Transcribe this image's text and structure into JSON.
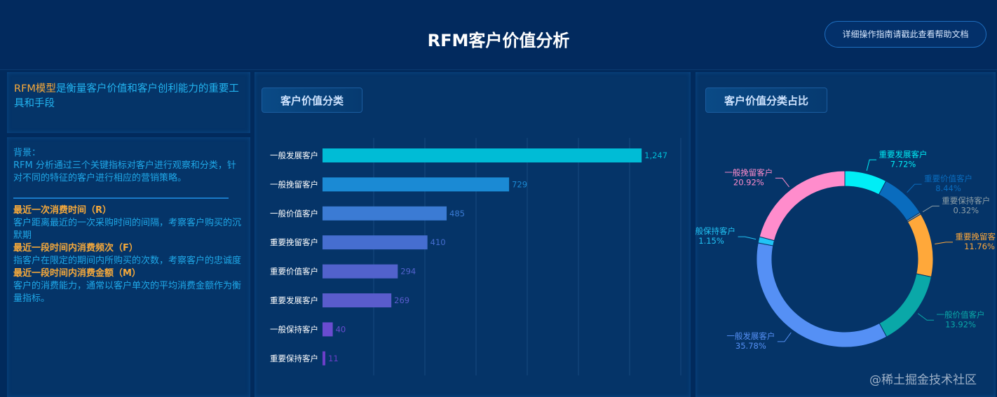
{
  "header": {
    "title": "RFM客户价值分析",
    "help_button": "详细操作指南请戳此查看帮助文档"
  },
  "intro": {
    "highlight": "RFM模型",
    "text": "是衡量客户价值和客户创利能力的重要工具和手段"
  },
  "description": {
    "background_label": "背景：",
    "background_text": "RFM 分析通过三个关键指标对客户进行观察和分类，针对不同的特征的客户进行相应的营销策略。",
    "metrics": [
      {
        "title": "最近一次消费时间（R）",
        "text": "客户距离最近的一次采购时间的间隔，考察客户购买的沉默期"
      },
      {
        "title": "最近一段时间内消费频次（F）",
        "text": "指客户在限定的期间内所购买的次数，考察客户的忠诚度"
      },
      {
        "title": "最近一段时间内消费金额（M）",
        "text": "客户的消费能力，通常以客户单次的平均消费金额作为衡量指标。"
      }
    ]
  },
  "bar_panel": {
    "title": "客户价值分类"
  },
  "pie_panel": {
    "title": "客户价值分类占比"
  },
  "watermark": "@稀土掘金技术社区",
  "chart_data": [
    {
      "type": "bar",
      "orientation": "horizontal",
      "categories": [
        "一般发展客户",
        "一般挽留客户",
        "一般价值客户",
        "重要挽留客户",
        "重要价值客户",
        "重要发展客户",
        "一般保持客户",
        "重要保持客户"
      ],
      "values": [
        1247,
        729,
        485,
        410,
        294,
        269,
        40,
        11
      ],
      "value_labels": [
        "1,247",
        "729",
        "485",
        "410",
        "294",
        "269",
        "40",
        "11"
      ],
      "colors": [
        "#00bcd6",
        "#1b8ad4",
        "#3b7bd4",
        "#466ed0",
        "#5262cc",
        "#5a5ccc",
        "#6a4cd0",
        "#6c3fc8"
      ],
      "xlim": [
        0,
        1400
      ],
      "grid": true,
      "title": "客户价值分类"
    },
    {
      "type": "pie",
      "donut": true,
      "title": "客户价值分类占比",
      "slices": [
        {
          "name": "重要发展客户",
          "value": 7.72,
          "label": "7.72%",
          "color": "#00eef6"
        },
        {
          "name": "重要价值客户",
          "value": 8.44,
          "label": "8.44%",
          "color": "#0a6cbe"
        },
        {
          "name": "重要保持客户",
          "value": 0.32,
          "label": "0.32%",
          "color": "#8fa0a8"
        },
        {
          "name": "重要挽留客户",
          "value": 11.76,
          "label": "11.76%",
          "color": "#ffa83a"
        },
        {
          "name": "一般价值客户",
          "value": 13.92,
          "label": "13.92%",
          "color": "#0aa8a8"
        },
        {
          "name": "一般发展客户",
          "value": 35.78,
          "label": "35.78%",
          "color": "#5590f5"
        },
        {
          "name": "一般保持客户",
          "value": 1.15,
          "label": "1.15%",
          "color": "#22c4f5"
        },
        {
          "name": "一般挽留客户",
          "value": 20.92,
          "label": "20.92%",
          "color": "#ff8ccc"
        }
      ]
    }
  ]
}
